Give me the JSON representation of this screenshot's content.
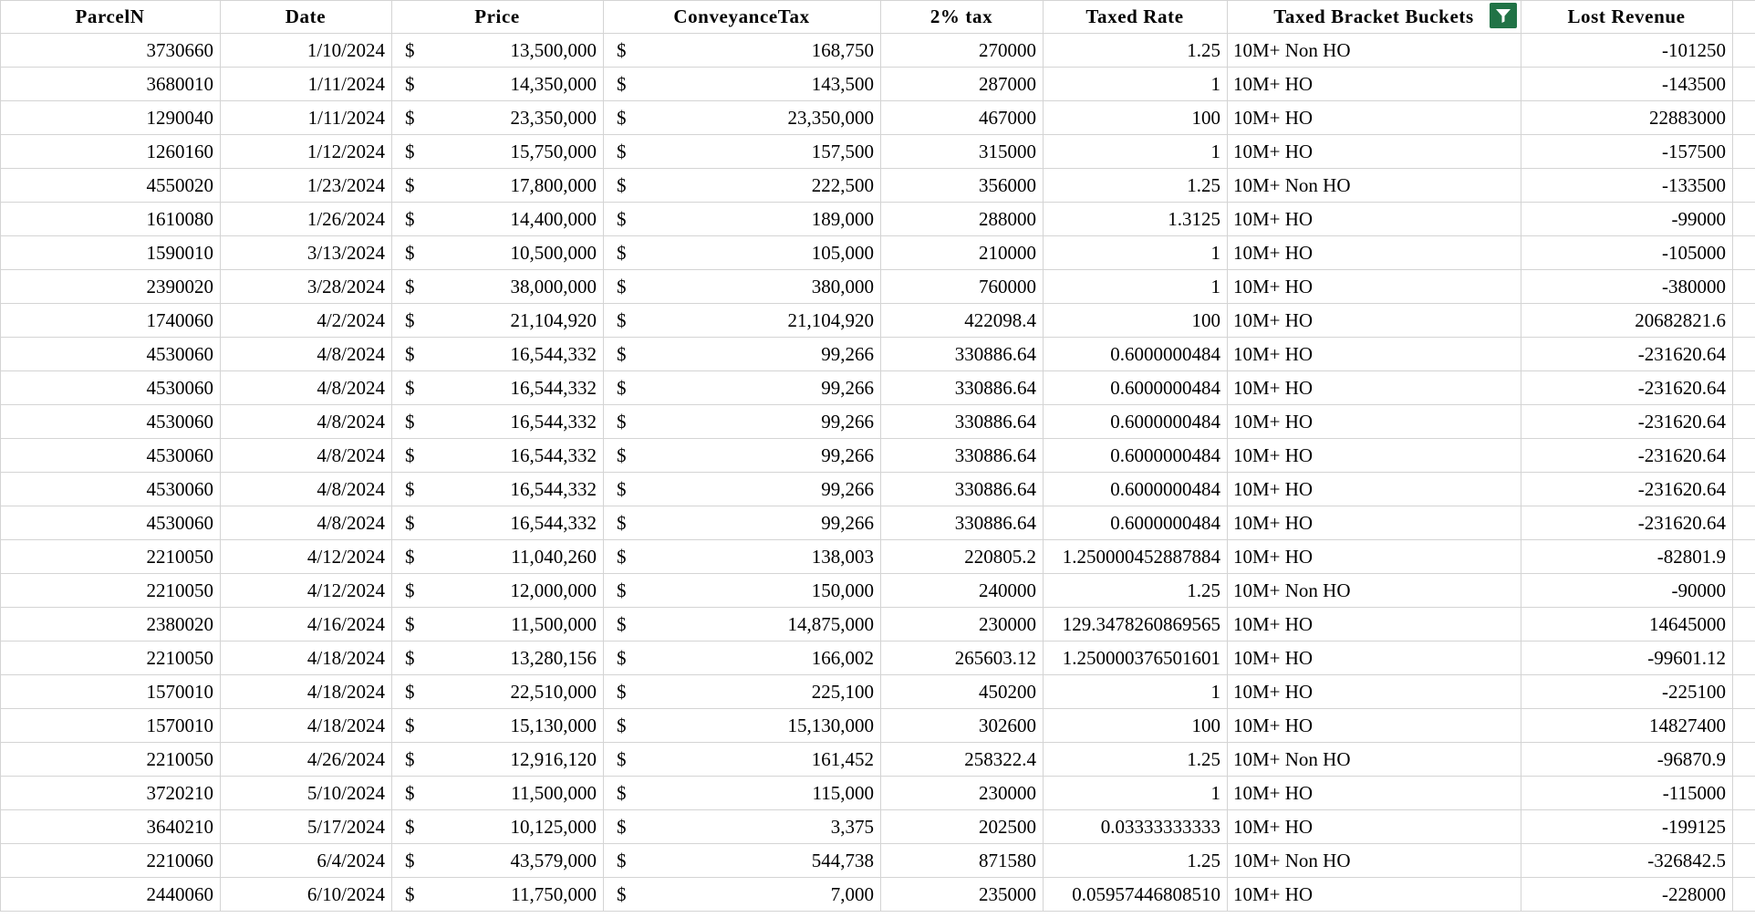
{
  "headers": {
    "parcel": "ParcelN",
    "date": "Date",
    "price": "Price",
    "conveyance": "ConveyanceTax",
    "tax2": "2% tax",
    "rate": "Taxed Rate",
    "bucket": "Taxed Bracket Buckets",
    "lost": "Lost Revenue"
  },
  "icons": {
    "filter": "filter-icon"
  },
  "colors": {
    "filter_bg": "#217346"
  },
  "currency_symbol": "$",
  "rows": [
    {
      "parcel": "3730660",
      "date": "1/10/2024",
      "price": "13,500,000",
      "conveyance": "168,750",
      "tax2": "270000",
      "rate": "1.25",
      "bucket": "10M+ Non HO",
      "lost": "-101250"
    },
    {
      "parcel": "3680010",
      "date": "1/11/2024",
      "price": "14,350,000",
      "conveyance": "143,500",
      "tax2": "287000",
      "rate": "1",
      "bucket": "10M+ HO",
      "lost": "-143500"
    },
    {
      "parcel": "1290040",
      "date": "1/11/2024",
      "price": "23,350,000",
      "conveyance": "23,350,000",
      "tax2": "467000",
      "rate": "100",
      "bucket": "10M+ HO",
      "lost": "22883000"
    },
    {
      "parcel": "1260160",
      "date": "1/12/2024",
      "price": "15,750,000",
      "conveyance": "157,500",
      "tax2": "315000",
      "rate": "1",
      "bucket": "10M+ HO",
      "lost": "-157500"
    },
    {
      "parcel": "4550020",
      "date": "1/23/2024",
      "price": "17,800,000",
      "conveyance": "222,500",
      "tax2": "356000",
      "rate": "1.25",
      "bucket": "10M+ Non HO",
      "lost": "-133500"
    },
    {
      "parcel": "1610080",
      "date": "1/26/2024",
      "price": "14,400,000",
      "conveyance": "189,000",
      "tax2": "288000",
      "rate": "1.3125",
      "bucket": "10M+ HO",
      "lost": "-99000"
    },
    {
      "parcel": "1590010",
      "date": "3/13/2024",
      "price": "10,500,000",
      "conveyance": "105,000",
      "tax2": "210000",
      "rate": "1",
      "bucket": "10M+ HO",
      "lost": "-105000"
    },
    {
      "parcel": "2390020",
      "date": "3/28/2024",
      "price": "38,000,000",
      "conveyance": "380,000",
      "tax2": "760000",
      "rate": "1",
      "bucket": "10M+ HO",
      "lost": "-380000"
    },
    {
      "parcel": "1740060",
      "date": "4/2/2024",
      "price": "21,104,920",
      "conveyance": "21,104,920",
      "tax2": "422098.4",
      "rate": "100",
      "bucket": "10M+ HO",
      "lost": "20682821.6"
    },
    {
      "parcel": "4530060",
      "date": "4/8/2024",
      "price": "16,544,332",
      "conveyance": "99,266",
      "tax2": "330886.64",
      "rate": "0.6000000484",
      "bucket": "10M+ HO",
      "lost": "-231620.64"
    },
    {
      "parcel": "4530060",
      "date": "4/8/2024",
      "price": "16,544,332",
      "conveyance": "99,266",
      "tax2": "330886.64",
      "rate": "0.6000000484",
      "bucket": "10M+ HO",
      "lost": "-231620.64"
    },
    {
      "parcel": "4530060",
      "date": "4/8/2024",
      "price": "16,544,332",
      "conveyance": "99,266",
      "tax2": "330886.64",
      "rate": "0.6000000484",
      "bucket": "10M+ HO",
      "lost": "-231620.64"
    },
    {
      "parcel": "4530060",
      "date": "4/8/2024",
      "price": "16,544,332",
      "conveyance": "99,266",
      "tax2": "330886.64",
      "rate": "0.6000000484",
      "bucket": "10M+ HO",
      "lost": "-231620.64"
    },
    {
      "parcel": "4530060",
      "date": "4/8/2024",
      "price": "16,544,332",
      "conveyance": "99,266",
      "tax2": "330886.64",
      "rate": "0.6000000484",
      "bucket": "10M+ HO",
      "lost": "-231620.64"
    },
    {
      "parcel": "4530060",
      "date": "4/8/2024",
      "price": "16,544,332",
      "conveyance": "99,266",
      "tax2": "330886.64",
      "rate": "0.6000000484",
      "bucket": "10M+ HO",
      "lost": "-231620.64"
    },
    {
      "parcel": "2210050",
      "date": "4/12/2024",
      "price": "11,040,260",
      "conveyance": "138,003",
      "tax2": "220805.2",
      "rate": "1.250000452887884",
      "bucket": "10M+ HO",
      "lost": "-82801.9"
    },
    {
      "parcel": "2210050",
      "date": "4/12/2024",
      "price": "12,000,000",
      "conveyance": "150,000",
      "tax2": "240000",
      "rate": "1.25",
      "bucket": "10M+ Non HO",
      "lost": "-90000"
    },
    {
      "parcel": "2380020",
      "date": "4/16/2024",
      "price": "11,500,000",
      "conveyance": "14,875,000",
      "tax2": "230000",
      "rate": "129.3478260869565",
      "bucket": "10M+ HO",
      "lost": "14645000"
    },
    {
      "parcel": "2210050",
      "date": "4/18/2024",
      "price": "13,280,156",
      "conveyance": "166,002",
      "tax2": "265603.12",
      "rate": "1.250000376501601",
      "bucket": "10M+ HO",
      "lost": "-99601.12"
    },
    {
      "parcel": "1570010",
      "date": "4/18/2024",
      "price": "22,510,000",
      "conveyance": "225,100",
      "tax2": "450200",
      "rate": "1",
      "bucket": "10M+ HO",
      "lost": "-225100"
    },
    {
      "parcel": "1570010",
      "date": "4/18/2024",
      "price": "15,130,000",
      "conveyance": "15,130,000",
      "tax2": "302600",
      "rate": "100",
      "bucket": "10M+ HO",
      "lost": "14827400"
    },
    {
      "parcel": "2210050",
      "date": "4/26/2024",
      "price": "12,916,120",
      "conveyance": "161,452",
      "tax2": "258322.4",
      "rate": "1.25",
      "bucket": "10M+ Non HO",
      "lost": "-96870.9"
    },
    {
      "parcel": "3720210",
      "date": "5/10/2024",
      "price": "11,500,000",
      "conveyance": "115,000",
      "tax2": "230000",
      "rate": "1",
      "bucket": "10M+ HO",
      "lost": "-115000"
    },
    {
      "parcel": "3640210",
      "date": "5/17/2024",
      "price": "10,125,000",
      "conveyance": "3,375",
      "tax2": "202500",
      "rate": "0.03333333333",
      "bucket": "10M+ HO",
      "lost": "-199125"
    },
    {
      "parcel": "2210060",
      "date": "6/4/2024",
      "price": "43,579,000",
      "conveyance": "544,738",
      "tax2": "871580",
      "rate": "1.25",
      "bucket": "10M+ Non HO",
      "lost": "-326842.5"
    },
    {
      "parcel": "2440060",
      "date": "6/10/2024",
      "price": "11,750,000",
      "conveyance": "7,000",
      "tax2": "235000",
      "rate": "0.05957446808510",
      "bucket": "10M+ HO",
      "lost": "-228000"
    }
  ]
}
